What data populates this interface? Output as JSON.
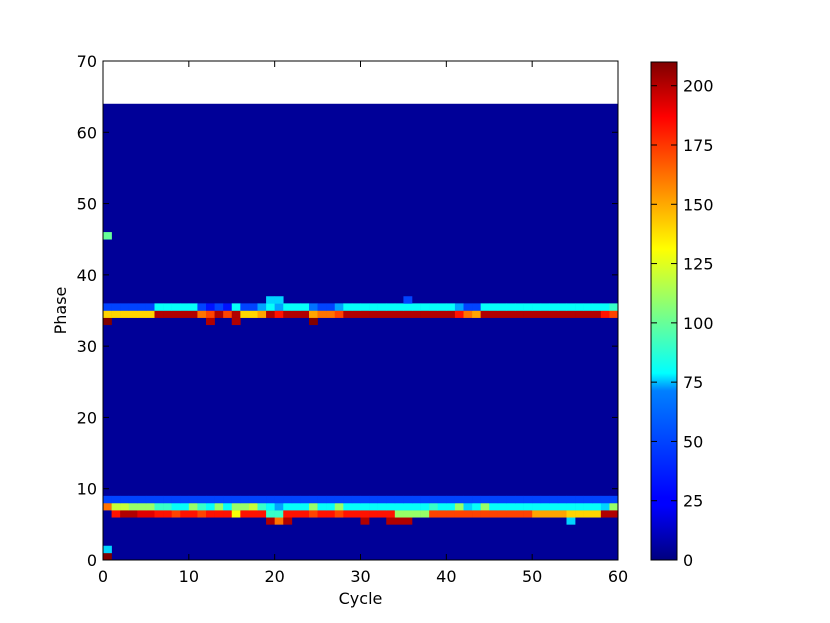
{
  "chart_data": {
    "type": "heatmap",
    "xlabel": "Cycle",
    "ylabel": "Phase",
    "xlim": [
      0,
      60
    ],
    "ylim": [
      0,
      70
    ],
    "x_ticks": [
      "0",
      "10",
      "20",
      "30",
      "40",
      "50",
      "60"
    ],
    "y_ticks": [
      "0",
      "10",
      "20",
      "30",
      "40",
      "50",
      "60",
      "70"
    ],
    "grid_extent": {
      "cycles": 60,
      "phases": 64
    },
    "colormap": "jet",
    "colorbar": {
      "min": 0,
      "max": 210,
      "ticks": [
        "0",
        "25",
        "50",
        "75",
        "100",
        "125",
        "150",
        "175",
        "200"
      ]
    },
    "background_value": 5,
    "bands": [
      {
        "description": "upper band",
        "rows": {
          "36": [
            0,
            0,
            0,
            0,
            0,
            0,
            0,
            0,
            0,
            0,
            0,
            0,
            0,
            0,
            0,
            0,
            0,
            0,
            0,
            70,
            70,
            0,
            0,
            0,
            0,
            0,
            0,
            0,
            0,
            0,
            0,
            0,
            0,
            0,
            0,
            40,
            0,
            0,
            0,
            0,
            0,
            0,
            0,
            0,
            0,
            0,
            0,
            0,
            0,
            0,
            0,
            0,
            0,
            0,
            0,
            0,
            0,
            0,
            0,
            0
          ],
          "35": [
            40,
            40,
            40,
            40,
            40,
            40,
            80,
            80,
            80,
            80,
            80,
            40,
            30,
            40,
            30,
            80,
            40,
            40,
            60,
            80,
            60,
            80,
            80,
            80,
            50,
            40,
            40,
            60,
            80,
            80,
            80,
            80,
            80,
            80,
            80,
            80,
            80,
            80,
            80,
            80,
            80,
            60,
            40,
            40,
            80,
            80,
            80,
            80,
            80,
            80,
            80,
            80,
            80,
            80,
            80,
            80,
            80,
            80,
            80,
            90
          ],
          "34": [
            140,
            140,
            140,
            140,
            140,
            140,
            200,
            200,
            200,
            200,
            200,
            160,
            170,
            200,
            170,
            200,
            140,
            140,
            150,
            200,
            180,
            200,
            200,
            200,
            150,
            160,
            160,
            170,
            200,
            200,
            200,
            200,
            200,
            200,
            200,
            200,
            200,
            200,
            200,
            200,
            200,
            180,
            160,
            150,
            200,
            200,
            200,
            200,
            200,
            200,
            200,
            200,
            200,
            200,
            200,
            200,
            200,
            200,
            180,
            170
          ],
          "33": [
            210,
            0,
            0,
            0,
            0,
            0,
            0,
            0,
            0,
            0,
            0,
            0,
            200,
            0,
            0,
            200,
            0,
            0,
            0,
            0,
            0,
            0,
            0,
            0,
            210,
            0,
            0,
            0,
            0,
            0,
            0,
            0,
            0,
            0,
            0,
            0,
            0,
            0,
            0,
            0,
            0,
            0,
            0,
            0,
            0,
            0,
            0,
            0,
            0,
            0,
            0,
            0,
            0,
            0,
            0,
            0,
            0,
            0,
            0,
            0
          ]
        }
      },
      {
        "description": "lower band",
        "rows": {
          "8": [
            40,
            40,
            40,
            40,
            40,
            40,
            40,
            40,
            40,
            40,
            40,
            40,
            40,
            40,
            40,
            40,
            40,
            40,
            40,
            40,
            40,
            40,
            40,
            40,
            40,
            40,
            40,
            40,
            40,
            40,
            40,
            40,
            40,
            40,
            40,
            40,
            40,
            40,
            40,
            40,
            40,
            40,
            40,
            40,
            40,
            40,
            40,
            40,
            40,
            40,
            40,
            40,
            40,
            40,
            40,
            40,
            40,
            40,
            40,
            40
          ],
          "7": [
            160,
            120,
            120,
            110,
            110,
            110,
            90,
            90,
            80,
            80,
            110,
            90,
            80,
            110,
            80,
            110,
            110,
            120,
            90,
            80,
            60,
            80,
            80,
            80,
            110,
            80,
            80,
            110,
            80,
            80,
            80,
            80,
            80,
            80,
            80,
            80,
            80,
            80,
            90,
            80,
            80,
            110,
            70,
            80,
            110,
            80,
            80,
            80,
            80,
            80,
            80,
            80,
            80,
            80,
            80,
            80,
            80,
            80,
            70,
            110
          ],
          "6": [
            0,
            180,
            200,
            200,
            190,
            190,
            180,
            180,
            170,
            180,
            180,
            170,
            180,
            180,
            180,
            130,
            180,
            180,
            180,
            90,
            90,
            180,
            180,
            180,
            170,
            180,
            180,
            170,
            180,
            180,
            180,
            180,
            180,
            180,
            110,
            110,
            110,
            110,
            170,
            170,
            170,
            170,
            170,
            170,
            170,
            170,
            170,
            170,
            170,
            170,
            150,
            150,
            150,
            150,
            140,
            140,
            140,
            140,
            200,
            200
          ],
          "5": [
            0,
            0,
            0,
            0,
            0,
            0,
            0,
            0,
            0,
            0,
            0,
            0,
            0,
            0,
            0,
            0,
            0,
            0,
            0,
            200,
            160,
            200,
            0,
            0,
            0,
            0,
            0,
            0,
            0,
            0,
            200,
            0,
            0,
            200,
            200,
            200,
            0,
            0,
            0,
            0,
            0,
            0,
            0,
            0,
            0,
            0,
            0,
            0,
            0,
            0,
            0,
            0,
            0,
            0,
            70,
            0,
            0,
            0,
            0,
            0
          ]
        }
      },
      {
        "description": "isolated cells",
        "rows": {
          "45": [
            100
          ],
          "1": [
            70
          ],
          "0": [
            210
          ]
        }
      }
    ]
  }
}
